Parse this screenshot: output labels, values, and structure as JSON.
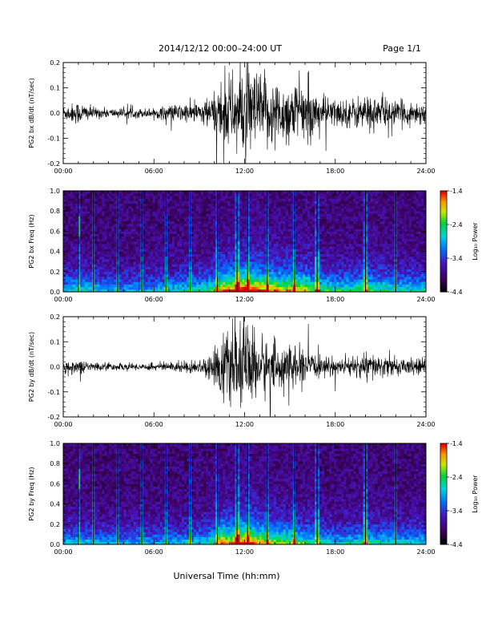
{
  "header": {
    "title": "2014/12/12   00:00–24:00 UT",
    "page": "Page 1/1"
  },
  "footer": {
    "xlabel": "Universal Time (hh:mm)"
  },
  "chart_data": [
    {
      "type": "line",
      "id": "bx-waveform",
      "ylabel": "PG2 bx dB/dt (nT/sec)",
      "xlim": [
        "00:00",
        "24:00"
      ],
      "x_ticks": [
        "00:00",
        "06:00",
        "12:00",
        "18:00",
        "24:00"
      ],
      "ylim": [
        -0.2,
        0.2
      ],
      "y_ticks": [
        "-0.2",
        "-0.1",
        "0.0",
        "0.1",
        "0.2"
      ],
      "color": "#000000",
      "envelope": {
        "hours": [
          0,
          1,
          2,
          3,
          4,
          5,
          6,
          7,
          8,
          9,
          10,
          10.5,
          11,
          12,
          13,
          14,
          15,
          16,
          17,
          18,
          19,
          20,
          21,
          22,
          23,
          24
        ],
        "amplitude": [
          0.03,
          0.05,
          0.025,
          0.02,
          0.02,
          0.02,
          0.02,
          0.035,
          0.04,
          0.045,
          0.08,
          0.16,
          0.15,
          0.2,
          0.17,
          0.14,
          0.13,
          0.12,
          0.08,
          0.06,
          0.06,
          0.08,
          0.07,
          0.05,
          0.05,
          0.05
        ]
      }
    },
    {
      "type": "heatmap",
      "id": "bx-spectrogram",
      "ylabel": "PG2 bx Freq (Hz)",
      "xlim": [
        "00:00",
        "24:00"
      ],
      "x_ticks": [
        "00:00",
        "06:00",
        "12:00",
        "18:00",
        "24:00"
      ],
      "ylim": [
        0.0,
        1.0
      ],
      "y_ticks": [
        "0.0",
        "0.2",
        "0.4",
        "0.6",
        "0.8",
        "1.0"
      ],
      "colorbar": {
        "label": "Log₁₀ Power",
        "range": [
          -4.4,
          -1.4
        ],
        "ticks": [
          "-1.4",
          "-2.4",
          "-3.4",
          "-4.4"
        ]
      },
      "vertical_lines_hours": [
        1.0,
        2.0,
        3.6,
        5.2,
        6.8,
        8.4,
        10.2,
        11.5,
        12.2,
        13.5,
        15.3,
        16.8,
        20.0,
        22.0
      ]
    },
    {
      "type": "line",
      "id": "by-waveform",
      "ylabel": "PG2 by dB/dt (nT/sec)",
      "xlim": [
        "00:00",
        "24:00"
      ],
      "x_ticks": [
        "00:00",
        "06:00",
        "12:00",
        "18:00",
        "24:00"
      ],
      "ylim": [
        -0.2,
        0.2
      ],
      "y_ticks": [
        "-0.2",
        "-0.1",
        "0.0",
        "0.1",
        "0.2"
      ],
      "color": "#000000",
      "envelope": {
        "hours": [
          0,
          1,
          2,
          3,
          4,
          5,
          6,
          7,
          8,
          9,
          10,
          10.5,
          11,
          12,
          13,
          14,
          15,
          16,
          17,
          18,
          19,
          20,
          21,
          22,
          23,
          24
        ],
        "amplitude": [
          0.025,
          0.03,
          0.02,
          0.015,
          0.015,
          0.015,
          0.015,
          0.02,
          0.025,
          0.03,
          0.06,
          0.17,
          0.13,
          0.19,
          0.14,
          0.1,
          0.09,
          0.07,
          0.04,
          0.035,
          0.04,
          0.06,
          0.05,
          0.035,
          0.035,
          0.035
        ]
      }
    },
    {
      "type": "heatmap",
      "id": "by-spectrogram",
      "ylabel": "PG2 by Freq (Hz)",
      "xlim": [
        "00:00",
        "24:00"
      ],
      "x_ticks": [
        "00:00",
        "06:00",
        "12:00",
        "18:00",
        "24:00"
      ],
      "ylim": [
        0.0,
        1.0
      ],
      "y_ticks": [
        "0.0",
        "0.2",
        "0.4",
        "0.6",
        "0.8",
        "1.0"
      ],
      "colorbar": {
        "label": "Log₁₀ Power",
        "range": [
          -4.4,
          -1.4
        ],
        "ticks": [
          "-1.4",
          "-2.4",
          "-3.4",
          "-4.4"
        ]
      },
      "vertical_lines_hours": [
        1.0,
        2.0,
        3.6,
        5.2,
        6.8,
        8.4,
        10.2,
        11.5,
        12.2,
        13.5,
        15.3,
        16.8,
        20.0,
        22.0
      ]
    }
  ]
}
